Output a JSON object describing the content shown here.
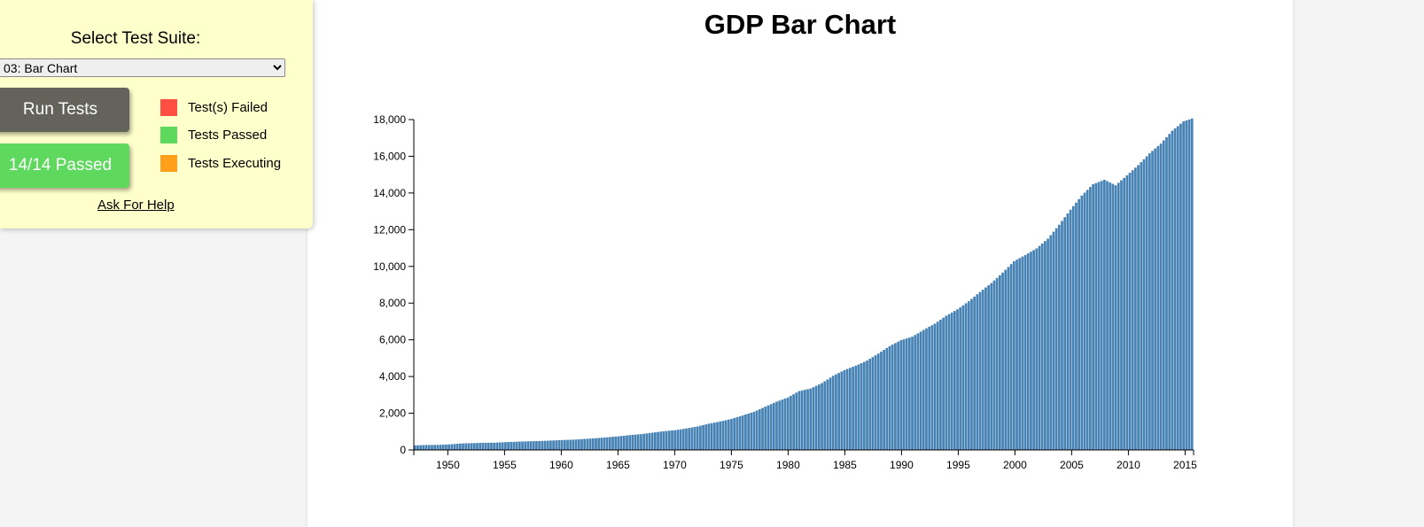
{
  "test_panel": {
    "select_label": "Select Test Suite:",
    "selected_suite": "03: Bar Chart",
    "run_button": "Run Tests",
    "result_button": "14/14 Passed",
    "help_link": "Ask For Help",
    "legend": [
      {
        "label": "Test(s) Failed",
        "color": "#ff4e42"
      },
      {
        "label": "Tests Passed",
        "color": "#5ed95e"
      },
      {
        "label": "Tests Executing",
        "color": "#ff9f1a"
      }
    ]
  },
  "chart_data": {
    "type": "bar",
    "title": "GDP Bar Chart",
    "xlabel": "",
    "ylabel": "",
    "bar_color": "#4682b4",
    "grid": false,
    "x_range": [
      1947.0,
      2015.75
    ],
    "ylim": [
      0,
      18000
    ],
    "x_ticks": [
      1950,
      1955,
      1960,
      1965,
      1970,
      1975,
      1980,
      1985,
      1990,
      1995,
      2000,
      2005,
      2010,
      2015
    ],
    "y_ticks": [
      0,
      2000,
      4000,
      6000,
      8000,
      10000,
      12000,
      14000,
      16000,
      18000
    ],
    "x_tick_labels": [
      "1950",
      "1955",
      "1960",
      "1965",
      "1970",
      "1975",
      "1980",
      "1985",
      "1990",
      "1995",
      "2000",
      "2005",
      "2010",
      "2015"
    ],
    "y_tick_labels": [
      "0",
      "2,000",
      "4,000",
      "6,000",
      "8,000",
      "10,000",
      "12,000",
      "14,000",
      "16,000",
      "18,000"
    ],
    "frequency": "quarterly",
    "annual_values": {
      "x": [
        1947,
        1948,
        1949,
        1950,
        1951,
        1952,
        1953,
        1954,
        1955,
        1956,
        1957,
        1958,
        1959,
        1960,
        1961,
        1962,
        1963,
        1964,
        1965,
        1966,
        1967,
        1968,
        1969,
        1970,
        1971,
        1972,
        1973,
        1974,
        1975,
        1976,
        1977,
        1978,
        1979,
        1980,
        1981,
        1982,
        1983,
        1984,
        1985,
        1986,
        1987,
        1988,
        1989,
        1990,
        1991,
        1992,
        1993,
        1994,
        1995,
        1996,
        1997,
        1998,
        1999,
        2000,
        2001,
        2002,
        2003,
        2004,
        2005,
        2006,
        2007,
        2008,
        2009,
        2010,
        2011,
        2012,
        2013,
        2014,
        2015,
        2015.75
      ],
      "y": [
        250,
        270,
        275,
        300,
        350,
        370,
        390,
        395,
        425,
        450,
        470,
        485,
        510,
        540,
        560,
        600,
        640,
        690,
        740,
        810,
        860,
        940,
        1020,
        1075,
        1170,
        1280,
        1430,
        1550,
        1690,
        1880,
        2080,
        2360,
        2630,
        2860,
        3210,
        3345,
        3640,
        4040,
        4350,
        4590,
        4870,
        5250,
        5660,
        5980,
        6170,
        6540,
        6880,
        7310,
        7660,
        8100,
        8610,
        9090,
        9660,
        10280,
        10620,
        10980,
        11510,
        12270,
        13090,
        13860,
        14480,
        14720,
        14420,
        14960,
        15520,
        16160,
        16690,
        17390,
        17900,
        18060
      ]
    }
  }
}
